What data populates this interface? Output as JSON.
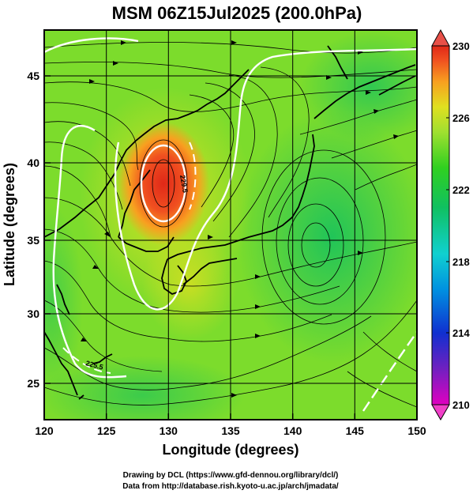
{
  "title": "MSM 06Z15Jul2025 (200.0hPa)",
  "x_axis": {
    "label": "Longitude (degrees)",
    "range": [
      120,
      150
    ],
    "ticks": [
      "120",
      "125",
      "130",
      "135",
      "140",
      "145",
      "150"
    ]
  },
  "y_axis": {
    "label": "Latitude  (degrees)",
    "range": [
      22.5,
      47.5
    ],
    "ticks": [
      "25",
      "30",
      "35",
      "40",
      "45"
    ]
  },
  "colorbar": {
    "range": [
      210,
      230
    ],
    "ticks": [
      "210",
      "214",
      "218",
      "222",
      "226",
      "230"
    ],
    "colors": [
      "#e000c0",
      "#7020c0",
      "#1030d0",
      "#0090e0",
      "#10d0d0",
      "#10c060",
      "#30d020",
      "#a0e030",
      "#e0e020",
      "#f8a020",
      "#f05020",
      "#e02818"
    ]
  },
  "contours": {
    "labels": [
      "229.5",
      "225.5"
    ]
  },
  "map": {
    "field": "temperature (K) with wind streamlines",
    "high_temperature_center": {
      "lon": 129.5,
      "lat": 38.5,
      "value": "about 229.5"
    },
    "grid": "on"
  },
  "credits": {
    "line1": "Drawing by DCL (https://www.gfd-dennou.org/library/dcl/)",
    "line2": "Data from http://database.rish.kyoto-u.ac.jp/arch/jmadata/"
  }
}
